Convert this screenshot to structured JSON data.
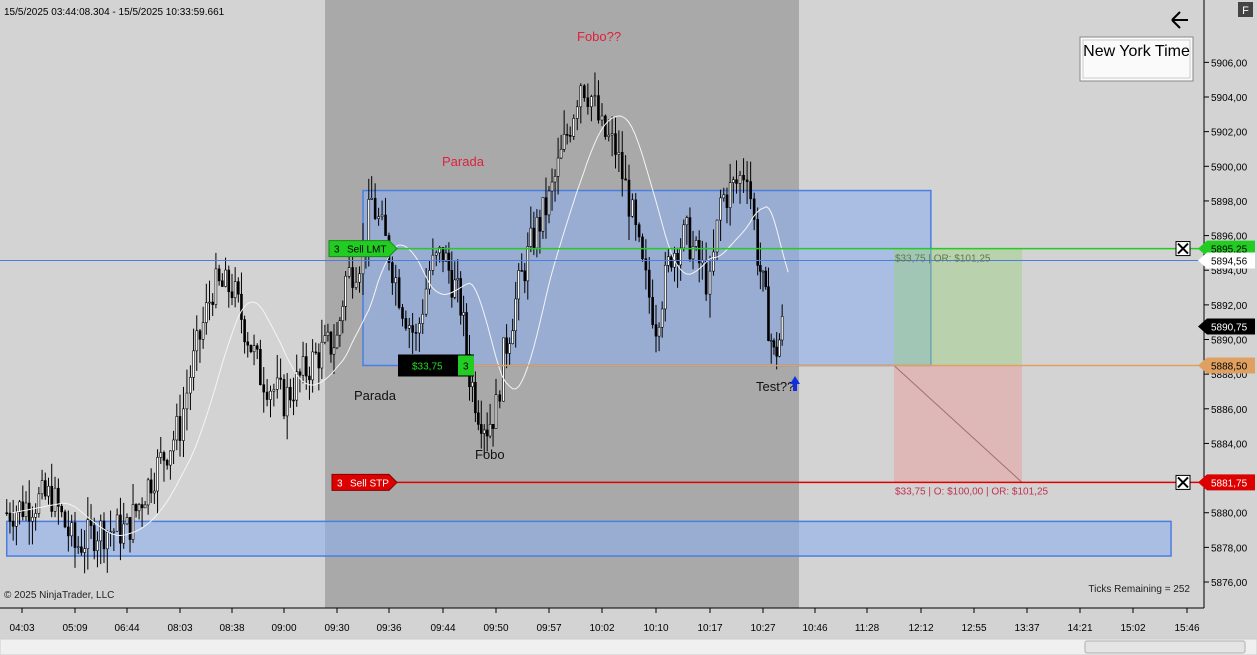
{
  "header": {
    "date_range": "15/5/2025 03:44:08.304 - 15/5/2025 10:33:59.661",
    "timezone_label": "New York Time",
    "f_button": "F"
  },
  "footer": {
    "copyright": "© 2025 NinjaTrader, LLC",
    "ticks_remaining": "Ticks Remaining = 252"
  },
  "annotations": {
    "parada_top": "Parada",
    "fobo_top": "Fobo??",
    "parada_bottom": "Parada",
    "fobo_bottom": "Fobo",
    "test": "Test??"
  },
  "orders": {
    "sell_lmt": {
      "qty": "3",
      "label": "Sell LMT",
      "price_label": "5895,25"
    },
    "sell_stp": {
      "qty": "3",
      "label": "Sell STP",
      "price_label": "5881,75"
    },
    "position": {
      "pnl": "$33,75",
      "qty": "3",
      "price_label": "5888,50"
    },
    "target_text": "$33,75 | OR: $101,25",
    "stop_text": "$33,75 | O: $100,00 | OR: $101,25"
  },
  "price_markers": {
    "blue_line": "5894,56",
    "last": "5890,75"
  },
  "colors": {
    "background": "#d3d3d3",
    "session_shade": "#a9a9a9",
    "rect_fill": "#8fb0f0",
    "rect_stroke": "#4a7fe0",
    "sell_lmt": "#22cc22",
    "sell_stp": "#dd0000",
    "position": "#e0a060",
    "annotation_red": "#e0203c"
  },
  "chart_data": {
    "type": "candlestick",
    "y_axis_ticks": [
      "5906,00",
      "5904,00",
      "5902,00",
      "5900,00",
      "5898,00",
      "5896,00",
      "5894,00",
      "5892,00",
      "5890,00",
      "5888,00",
      "5886,00",
      "5884,00",
      "5882,00",
      "5880,00",
      "5878,00",
      "5876,00"
    ],
    "x_axis_ticks": [
      "04:03",
      "05:09",
      "06:44",
      "08:03",
      "08:38",
      "09:00",
      "09:30",
      "09:36",
      "09:44",
      "09:50",
      "09:57",
      "10:02",
      "10:10",
      "10:17",
      "10:27",
      "10:46",
      "11:28",
      "12:12",
      "12:55",
      "13:37",
      "14:21",
      "15:02",
      "15:46"
    ],
    "ylim": [
      5874.5,
      5909.6
    ],
    "levels": {
      "sell_lmt": 5895.25,
      "sell_stp": 5881.75,
      "position": 5888.5,
      "blue_line": 5894.56,
      "last": 5890.75
    },
    "zones": [
      {
        "name": "upper-zone",
        "x_from": "09:33",
        "x_to": "12:20",
        "y_from": 5888.5,
        "y_to": 5898.6
      },
      {
        "name": "lower-zone",
        "x_from": "03:44",
        "x_to": "15:33",
        "y_from": 5877.5,
        "y_to": 5879.5
      }
    ],
    "price_path": {
      "x": [
        "03:44",
        "04:40",
        "05:09",
        "05:50",
        "06:44",
        "07:20",
        "08:03",
        "08:10",
        "08:25",
        "08:38",
        "08:50",
        "09:00",
        "09:18",
        "09:30",
        "09:31",
        "09:33",
        "09:34",
        "09:36",
        "09:38",
        "09:40",
        "09:42",
        "09:44",
        "09:46",
        "09:47",
        "09:48",
        "09:49",
        "09:50",
        "09:51",
        "09:53",
        "09:55",
        "09:57",
        "09:59",
        "10:00",
        "10:01",
        "10:02",
        "10:04",
        "10:06",
        "10:08",
        "10:10",
        "10:12",
        "10:14",
        "10:16",
        "10:17",
        "10:19",
        "10:22",
        "10:24",
        "10:26",
        "10:27",
        "10:29",
        "10:31",
        "10:33",
        "10:34"
      ],
      "y": [
        5880.0,
        5881.0,
        5878.0,
        5879.0,
        5879.0,
        5882.0,
        5885.0,
        5888.0,
        5893.0,
        5893.0,
        5888.0,
        5886.5,
        5889.0,
        5890.0,
        5893.5,
        5895.0,
        5898.0,
        5895.0,
        5892.0,
        5890.0,
        5894.0,
        5895.0,
        5892.0,
        5888.0,
        5886.0,
        5885.0,
        5886.0,
        5889.0,
        5893.0,
        5896.0,
        5898.0,
        5902.5,
        5905.0,
        5904.0,
        5902.0,
        5901.0,
        5898.0,
        5894.0,
        5891.0,
        5895.0,
        5896.0,
        5894.0,
        5893.0,
        5898.0,
        5899.0,
        5900.0,
        5895.0,
        5893.0,
        5891.0,
        5889.0,
        5890.0,
        5890.75
      ]
    }
  }
}
